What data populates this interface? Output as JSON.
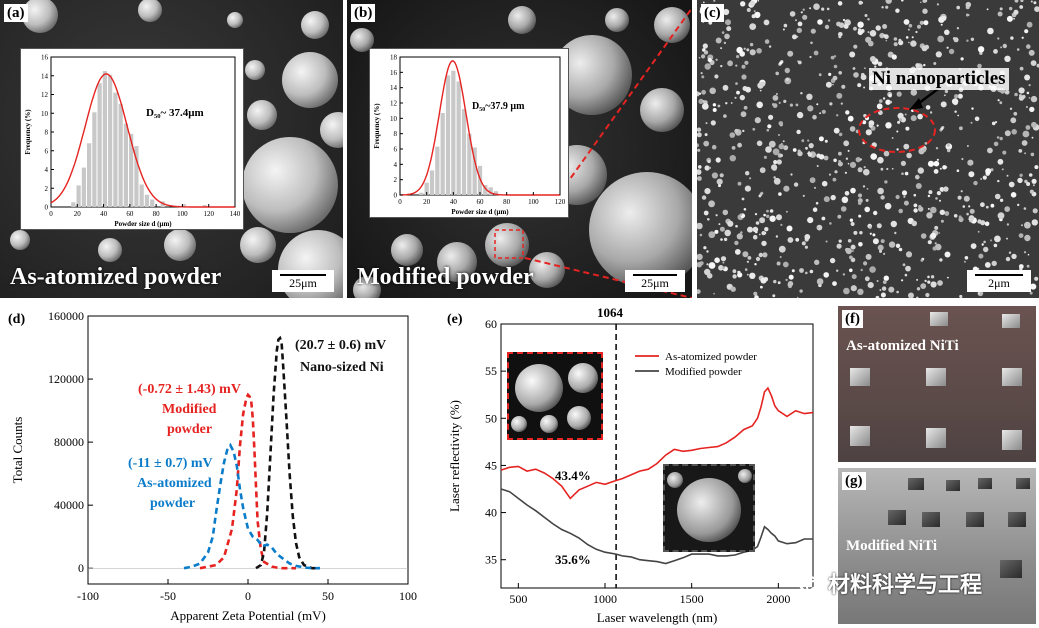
{
  "panels": {
    "a": {
      "label": "(a)",
      "caption": "As-atomized powder",
      "scale": "25μm",
      "d50": "D₅₀~ 37.4μm"
    },
    "b": {
      "label": "(b)",
      "caption": "Modified powder",
      "scale": "25μm",
      "d50": "D₅₀~37.9 μm"
    },
    "c": {
      "label": "(c)",
      "annotation": "Ni nanoparticles",
      "scale": "2μm"
    },
    "d": {
      "label": "(d)",
      "ann_ni": "(20.7 ± 0.6) mV",
      "ann_ni2": "Nano-sized Ni",
      "ann_mod": "(-0.72 ± 1.43) mV",
      "ann_mod2": "Modified",
      "ann_mod3": "powder",
      "ann_as": "(-11 ± 0.7) mV",
      "ann_as2": "As-atomized",
      "ann_as3": "powder"
    },
    "e": {
      "label": "(e)",
      "marker": "1064",
      "val_top": "43.4%",
      "val_bot": "35.6%"
    },
    "f": {
      "label": "(f)",
      "caption": "As-atomized NiTi"
    },
    "g": {
      "label": "(g)",
      "caption": "Modified NiTi"
    }
  },
  "watermark": "材料科学与工程",
  "colors": {
    "red": "#e52421",
    "blue": "#0a7cc9",
    "black": "#111111",
    "gray": "#444444"
  },
  "chart_data": [
    {
      "type": "bar",
      "panel": "a-inset",
      "xlabel": "Powder size d (μm)",
      "ylabel": "Frequency (%)",
      "xlim": [
        0,
        140
      ],
      "ylim": [
        0,
        16
      ],
      "xticks": [
        "0",
        "20",
        "40",
        "60",
        "80",
        "100",
        "120",
        "140"
      ],
      "yticks": [
        "0",
        "2",
        "4",
        "6",
        "8",
        "10",
        "12",
        "14",
        "16"
      ],
      "x": [
        17,
        21,
        25,
        29,
        33,
        37,
        41,
        45,
        49,
        53,
        57,
        61,
        65,
        69,
        73,
        77,
        85,
        101,
        117
      ],
      "values": [
        0.5,
        2.3,
        4.2,
        6.8,
        10.1,
        13.2,
        14.5,
        14.1,
        12.2,
        11.0,
        8.9,
        7.8,
        6.5,
        2.4,
        1.3,
        0.8,
        0.6,
        0.3,
        0.2
      ],
      "fit_peak": 14.2,
      "fit_center": 42,
      "fit_sigma": 16
    },
    {
      "type": "bar",
      "panel": "b-inset",
      "xlabel": "Powder size d (μm)",
      "ylabel": "Frequency (%)",
      "xlim": [
        0,
        120
      ],
      "ylim": [
        0,
        18
      ],
      "xticks": [
        "0",
        "20",
        "40",
        "60",
        "80",
        "100",
        "120"
      ],
      "yticks": [
        "0",
        "2",
        "4",
        "6",
        "8",
        "10",
        "12",
        "14",
        "16",
        "18"
      ],
      "x": [
        16,
        20,
        24,
        28,
        32,
        36,
        40,
        44,
        48,
        52,
        56,
        60,
        64,
        68,
        72
      ],
      "values": [
        0.3,
        1.6,
        3.2,
        6.3,
        10.7,
        15.6,
        16.2,
        14.8,
        11.2,
        8.0,
        6.2,
        3.8,
        1.3,
        1.0,
        0.5
      ],
      "fit_peak": 17.5,
      "fit_center": 39.5,
      "fit_sigma": 10
    },
    {
      "type": "line",
      "panel": "d",
      "xlabel": "Apparent Zeta Potential (mV)",
      "ylabel": "Total Counts",
      "xlim": [
        -100,
        100
      ],
      "ylim": [
        -10000,
        160000
      ],
      "xticks": [
        "-100",
        "-50",
        "0",
        "50",
        "100"
      ],
      "yticks": [
        "0",
        "40000",
        "80000",
        "120000",
        "160000"
      ],
      "series": [
        {
          "color": "#e52421",
          "x": [
            -30,
            -20,
            -15,
            -10,
            -7,
            -5,
            -3,
            -1,
            0,
            1,
            2,
            3,
            4,
            5,
            6,
            8,
            10,
            15,
            20,
            25,
            30
          ],
          "y": [
            0,
            2000,
            7000,
            25000,
            50000,
            78000,
            98000,
            108000,
            110000,
            109000,
            106000,
            95000,
            75000,
            52000,
            30000,
            12000,
            4000,
            1000,
            0,
            0,
            0
          ]
        },
        {
          "color": "#111111",
          "x": [
            5,
            8,
            10,
            12,
            14,
            16,
            18,
            19,
            20,
            21,
            22,
            24,
            26,
            28,
            30,
            32,
            35,
            40,
            45
          ],
          "y": [
            0,
            2000,
            10000,
            35000,
            72000,
            110000,
            138000,
            145000,
            146000,
            143000,
            128000,
            95000,
            60000,
            33000,
            16000,
            7000,
            2000,
            0,
            0
          ]
        },
        {
          "color": "#0a7cc9",
          "x": [
            -40,
            -35,
            -30,
            -25,
            -22,
            -20,
            -17,
            -15,
            -13,
            -11,
            -9,
            -7,
            -5,
            -3,
            0,
            3,
            6,
            9,
            12,
            15,
            18,
            22,
            26,
            30,
            35,
            40,
            45
          ],
          "y": [
            0,
            1000,
            3000,
            10000,
            20000,
            35000,
            55000,
            67000,
            75000,
            78000,
            74000,
            65000,
            50000,
            38000,
            25000,
            20000,
            18000,
            14000,
            15000,
            13000,
            9000,
            6000,
            3000,
            1500,
            500,
            0,
            0
          ]
        }
      ]
    },
    {
      "type": "line",
      "panel": "e",
      "xlabel": "Laser wavelength (nm)",
      "ylabel": "Laser reflectivity (%)",
      "xlim": [
        400,
        2200
      ],
      "ylim": [
        32,
        60
      ],
      "xticks": [
        "500",
        "1000",
        "1500",
        "2000"
      ],
      "yticks": [
        "35",
        "40",
        "45",
        "50",
        "55",
        "60"
      ],
      "series": [
        {
          "name": "As-atomized powder",
          "color": "#e52421",
          "x": [
            400,
            450,
            500,
            550,
            600,
            650,
            700,
            750,
            800,
            850,
            900,
            950,
            1000,
            1064,
            1100,
            1150,
            1200,
            1250,
            1300,
            1350,
            1400,
            1450,
            1500,
            1550,
            1600,
            1650,
            1700,
            1750,
            1800,
            1850,
            1880,
            1900,
            1920,
            1940,
            1960,
            1980,
            2000,
            2050,
            2100,
            2150,
            2200
          ],
          "y": [
            44.5,
            44.8,
            44.9,
            44.4,
            44.6,
            44.2,
            43.6,
            42.8,
            41.5,
            42.4,
            42.8,
            43.2,
            43.0,
            43.4,
            43.6,
            44.0,
            44.4,
            44.6,
            45.2,
            46.1,
            46.7,
            46.5,
            46.6,
            46.8,
            46.9,
            47.0,
            47.4,
            48.0,
            48.8,
            49.2,
            50.0,
            51.2,
            52.8,
            53.2,
            52.4,
            51.3,
            50.8,
            50.2,
            50.8,
            50.5,
            50.6
          ]
        },
        {
          "name": "Modified powder",
          "color": "#444444",
          "x": [
            400,
            450,
            500,
            550,
            600,
            650,
            700,
            750,
            800,
            850,
            900,
            950,
            1000,
            1064,
            1100,
            1150,
            1200,
            1250,
            1300,
            1350,
            1400,
            1450,
            1500,
            1550,
            1600,
            1650,
            1700,
            1750,
            1800,
            1850,
            1880,
            1900,
            1920,
            1940,
            1960,
            1980,
            2000,
            2050,
            2100,
            2150,
            2200
          ],
          "y": [
            42.5,
            42.2,
            41.5,
            40.8,
            40.2,
            39.5,
            38.8,
            38.2,
            37.8,
            37.3,
            36.6,
            36.1,
            35.8,
            35.6,
            35.4,
            35.3,
            35.0,
            34.9,
            34.8,
            34.6,
            34.9,
            35.2,
            35.6,
            35.6,
            35.6,
            35.4,
            35.4,
            35.5,
            35.8,
            36.0,
            36.4,
            37.4,
            38.5,
            38.2,
            37.8,
            37.5,
            37.0,
            36.7,
            36.8,
            37.2,
            37.2
          ]
        }
      ]
    }
  ]
}
